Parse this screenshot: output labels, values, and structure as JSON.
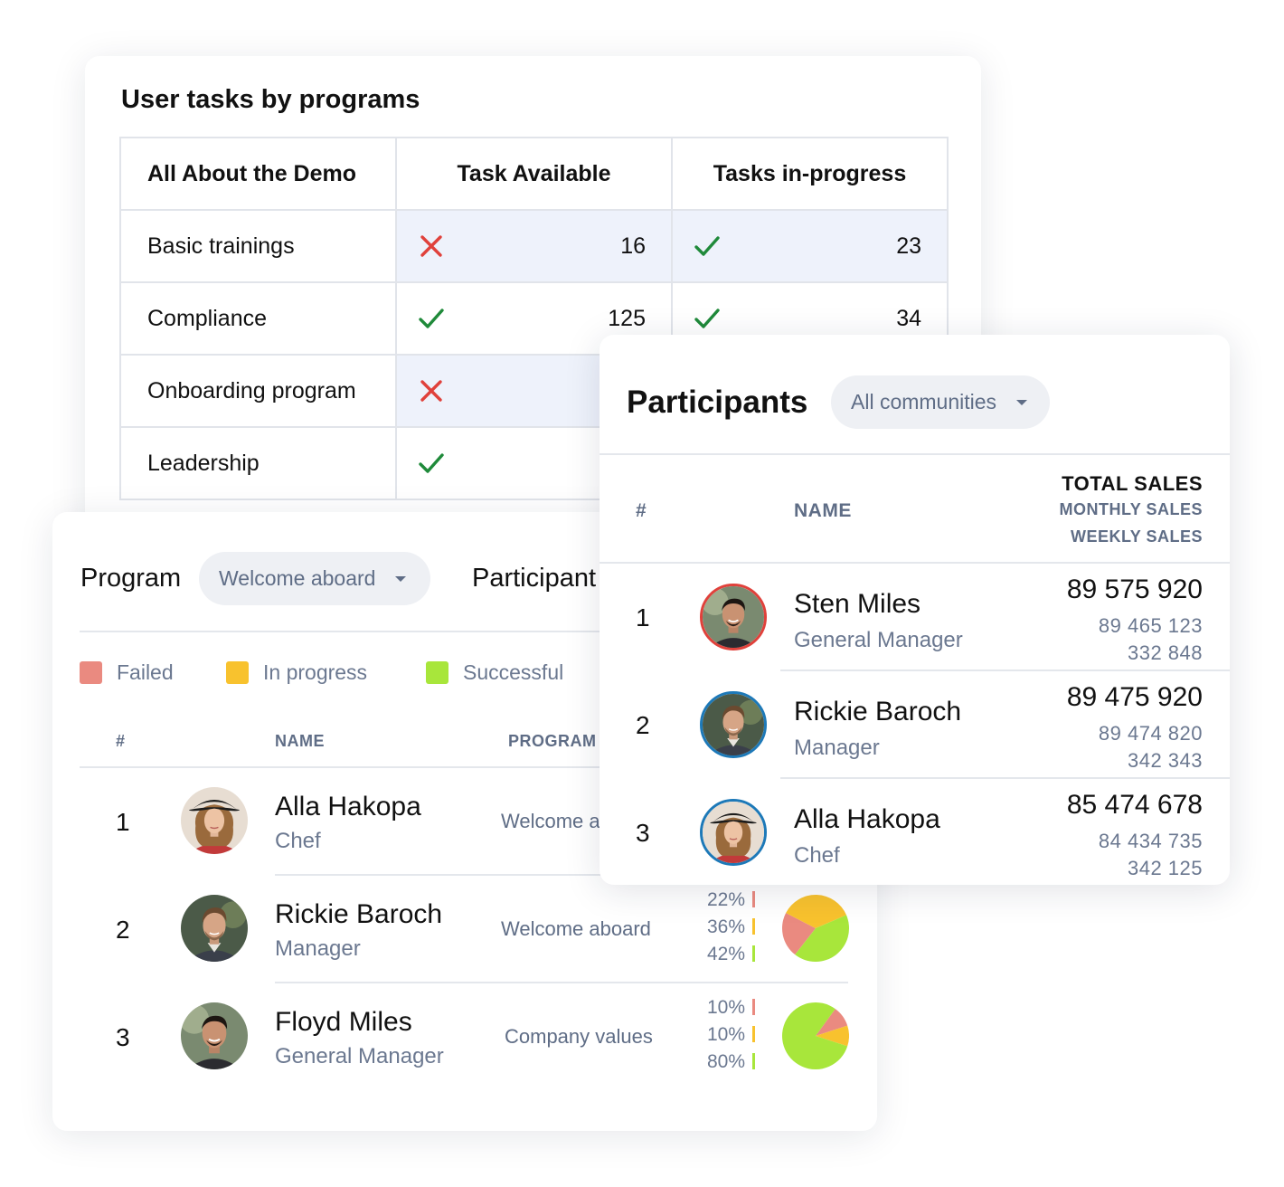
{
  "tasks": {
    "title": "User tasks by programs",
    "headers": [
      "All About the Demo",
      "Task Available",
      "Tasks in-progress"
    ],
    "rows": [
      {
        "name": "Basic trainings",
        "available_status": "cross-icon",
        "available": "16",
        "inprogress_status": "check-icon",
        "inprogress": "23"
      },
      {
        "name": "Compliance",
        "available_status": "check-icon",
        "available": "125",
        "inprogress_status": "check-icon",
        "inprogress": "34"
      },
      {
        "name": "Onboarding program",
        "available_status": "cross-icon",
        "available": "",
        "inprogress_status": "",
        "inprogress": ""
      },
      {
        "name": "Leadership",
        "available_status": "check-icon",
        "available": "",
        "inprogress_status": "",
        "inprogress": ""
      }
    ]
  },
  "program": {
    "label": "Program",
    "dropdown_value": "Welcome aboard",
    "participant_label": "Participant",
    "legend": [
      {
        "label": "Failed",
        "color": "#ea8a80"
      },
      {
        "label": "In progress",
        "color": "#f8c22e"
      },
      {
        "label": "Successful",
        "color": "#a8e63b"
      }
    ],
    "columns": {
      "num": "#",
      "name": "NAME",
      "program": "PROGRAM"
    },
    "rows": [
      {
        "num": "1",
        "name": "Alla Hakopa",
        "role": "Chef",
        "program": "Welcome a"
      },
      {
        "num": "2",
        "name": "Rickie Baroch",
        "role": "Manager",
        "program": "Welcome aboard",
        "failed": "22%",
        "progress": "36%",
        "success": "42%"
      },
      {
        "num": "3",
        "name": "Floyd Miles",
        "role": "General Manager",
        "program": "Company values",
        "failed": "10%",
        "progress": "10%",
        "success": "80%"
      }
    ]
  },
  "chart_data": [
    {
      "type": "pie",
      "categories": [
        "Failed",
        "In progress",
        "Successful"
      ],
      "values": [
        22,
        36,
        42
      ],
      "colors": [
        "#ea8a80",
        "#f8c22e",
        "#a8e63b"
      ]
    },
    {
      "type": "pie",
      "categories": [
        "Failed",
        "In progress",
        "Successful"
      ],
      "values": [
        10,
        10,
        80
      ],
      "colors": [
        "#ea8a80",
        "#f8c22e",
        "#a8e63b"
      ]
    }
  ],
  "participants": {
    "title": "Participants",
    "dropdown_value": "All communities",
    "columns": {
      "num": "#",
      "name": "NAME",
      "total": "TOTAL SALES",
      "monthly": "MONTHLY SALES",
      "weekly": "WEEKLY SALES"
    },
    "rows": [
      {
        "num": "1",
        "name": "Sten Miles",
        "role": "General Manager",
        "total": "89 575 920",
        "monthly": "89 465 123",
        "weekly": "332 848",
        "ring_color": "#e0413b"
      },
      {
        "num": "2",
        "name": "Rickie Baroch",
        "role": "Manager",
        "total": "89 475 920",
        "monthly": "89 474 820",
        "weekly": "342 343",
        "ring_color": "#1d79b8"
      },
      {
        "num": "3",
        "name": "Alla Hakopa",
        "role": "Chef",
        "total": "85 474 678",
        "monthly": "84 434 735",
        "weekly": "342 125",
        "ring_color": "#1d79b8"
      }
    ]
  }
}
